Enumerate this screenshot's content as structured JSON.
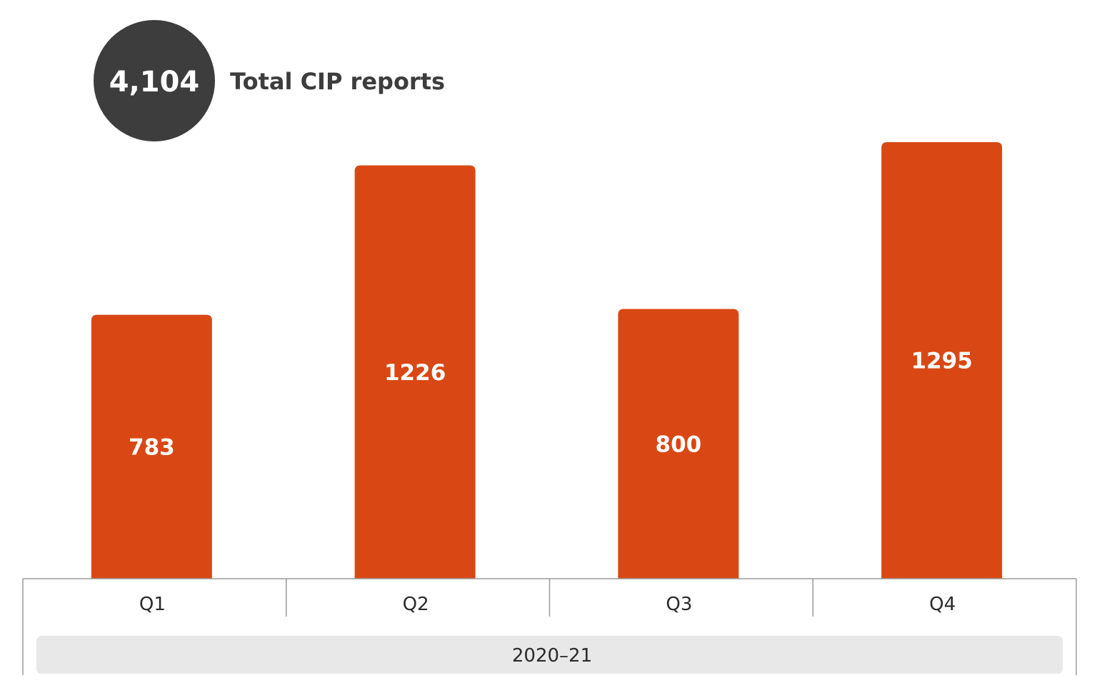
{
  "summary": {
    "total_value": "4,104",
    "total_label": "Total CIP reports"
  },
  "colors": {
    "bar": "#d94814",
    "circle": "#3d3d3d",
    "axis": "#9a9a9a",
    "period_band": "#e8e8e8"
  },
  "chart_data": {
    "type": "bar",
    "title": "",
    "xlabel": "",
    "ylabel": "",
    "categories": [
      "Q1",
      "Q2",
      "Q3",
      "Q4"
    ],
    "values": [
      783,
      1226,
      800,
      1295
    ],
    "data_labels": [
      "783",
      "1226",
      "800",
      "1295"
    ],
    "group_label": "2020–21",
    "ylim": [
      0,
      1295
    ],
    "grid": false,
    "legend": "none"
  }
}
